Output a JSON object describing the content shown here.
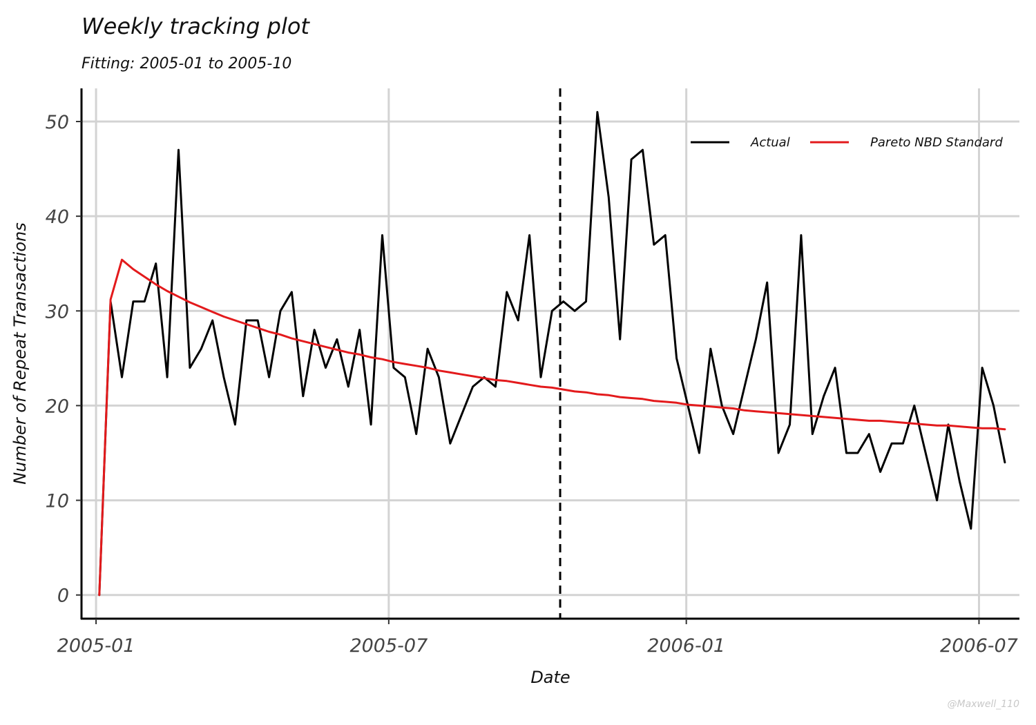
{
  "chart_data": {
    "type": "line",
    "title": "Weekly tracking plot",
    "subtitle": "Fitting: 2005-01 to 2005-10",
    "xlabel": "Date",
    "ylabel": "Number of Repeat Transactions",
    "ylim": [
      -2.5,
      53.5
    ],
    "xlim": [
      "2004-12-23",
      "2006-07-26"
    ],
    "y_ticks": [
      0,
      10,
      20,
      30,
      40,
      50
    ],
    "x_ticks": [
      {
        "date": "2005-01-01",
        "label": "2005-01"
      },
      {
        "date": "2005-07-01",
        "label": "2005-07"
      },
      {
        "date": "2006-01-01",
        "label": "2006-01"
      },
      {
        "date": "2006-07-01",
        "label": "2006-07"
      }
    ],
    "grid": true,
    "legend_position": "top-right",
    "calibration_end": "2005-10-15",
    "x_start": "2005-01-03",
    "x_step_days": 7,
    "series": [
      {
        "name": "Actual",
        "color": "#000000",
        "values": [
          0,
          31,
          23,
          31,
          31,
          35,
          23,
          47,
          24,
          26,
          29,
          23,
          18,
          29,
          29,
          23,
          30,
          32,
          21,
          28,
          24,
          27,
          22,
          28,
          18,
          38,
          24,
          23,
          17,
          26,
          23,
          16,
          19,
          22,
          23,
          22,
          32,
          29,
          38,
          23,
          30,
          31,
          30,
          31,
          51,
          42,
          27,
          46,
          47,
          37,
          38,
          25,
          20,
          15,
          26,
          20,
          17,
          22,
          27,
          33,
          15,
          18,
          38,
          17,
          21,
          24,
          15,
          15,
          17,
          13,
          16,
          16,
          20,
          15,
          10,
          18,
          12,
          7,
          24,
          20,
          14
        ]
      },
      {
        "name": "Pareto NBD Standard",
        "color": "#e31a1c",
        "values": [
          0,
          31.2,
          35.4,
          34.4,
          33.6,
          32.8,
          32.1,
          31.5,
          30.9,
          30.4,
          29.9,
          29.4,
          29.0,
          28.6,
          28.2,
          27.8,
          27.5,
          27.1,
          26.8,
          26.5,
          26.2,
          25.9,
          25.6,
          25.4,
          25.1,
          24.9,
          24.6,
          24.4,
          24.2,
          24.0,
          23.7,
          23.5,
          23.3,
          23.1,
          22.9,
          22.7,
          22.6,
          22.4,
          22.2,
          22.0,
          21.9,
          21.7,
          21.5,
          21.4,
          21.2,
          21.1,
          20.9,
          20.8,
          20.7,
          20.5,
          20.4,
          20.3,
          20.1,
          20.0,
          19.9,
          19.8,
          19.7,
          19.5,
          19.4,
          19.3,
          19.2,
          19.1,
          19.0,
          18.9,
          18.8,
          18.7,
          18.6,
          18.5,
          18.4,
          18.4,
          18.3,
          18.2,
          18.1,
          18.0,
          17.9,
          17.9,
          17.8,
          17.7,
          17.6,
          17.6,
          17.5
        ]
      }
    ]
  },
  "watermark": "@Maxwell_110"
}
